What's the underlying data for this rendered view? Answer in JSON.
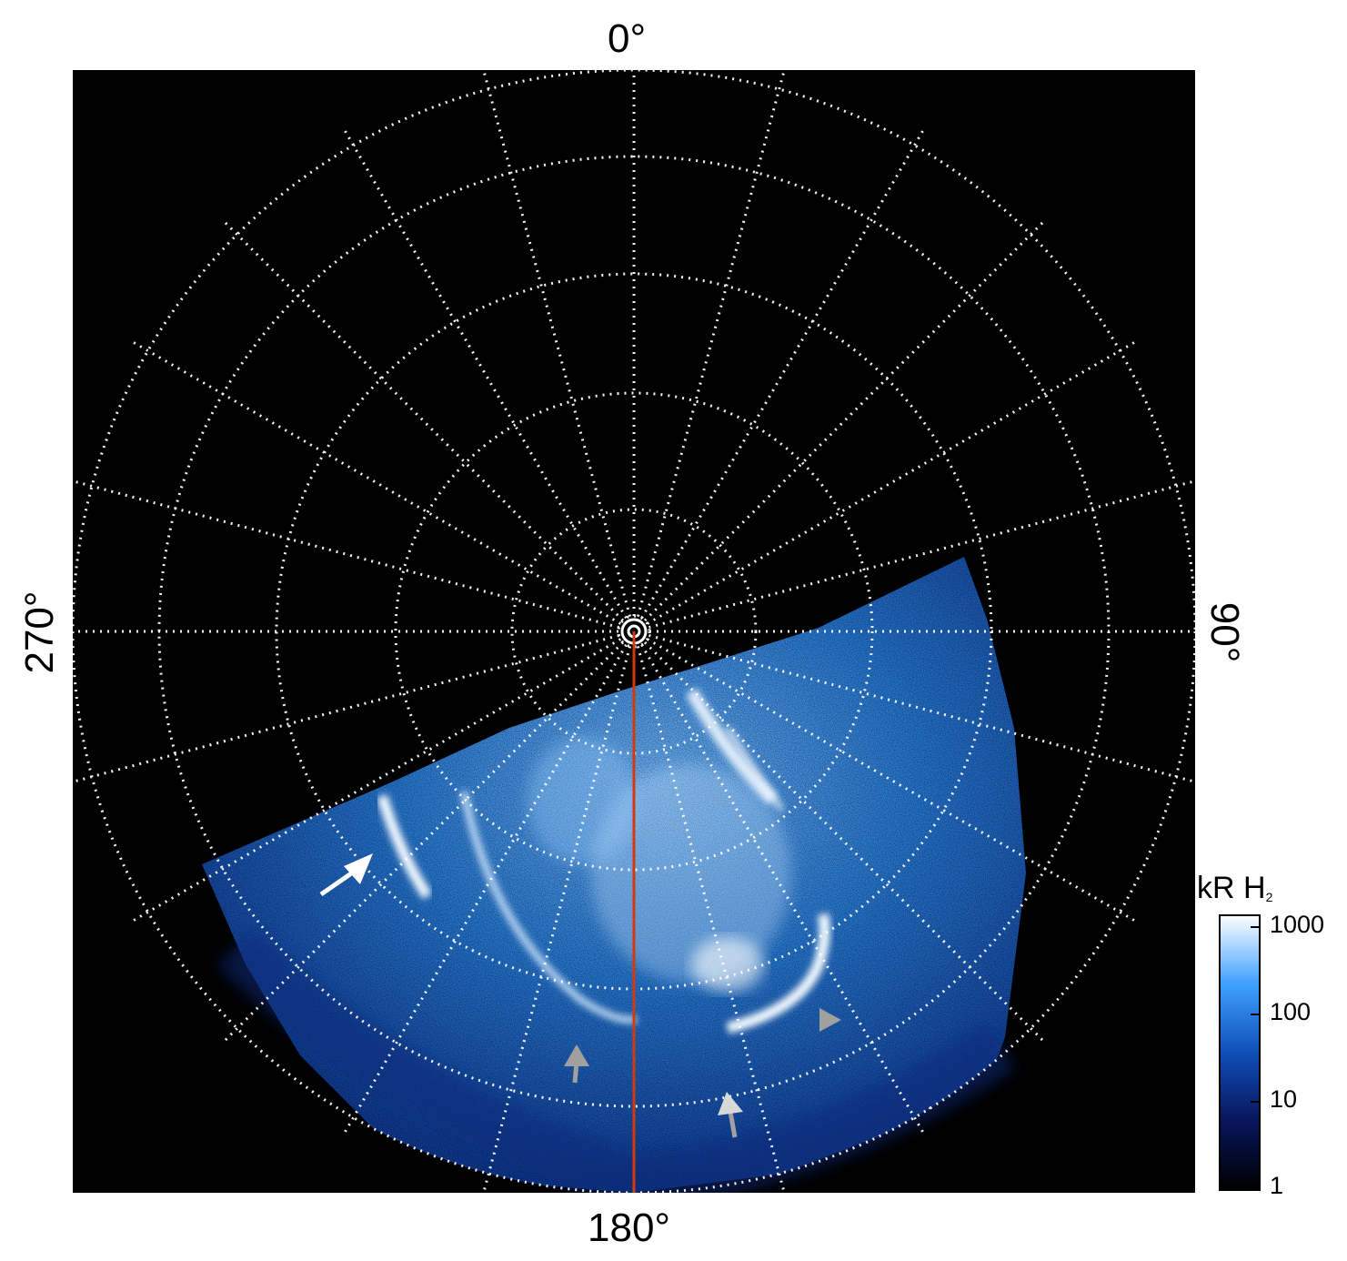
{
  "labels": {
    "top": "0°",
    "bottom": "180°",
    "left": "270°",
    "right": "90°"
  },
  "colorbar": {
    "title": "kR H",
    "subscript": "2",
    "ticks": [
      "1000",
      "100",
      "10",
      "1"
    ]
  },
  "colors": {
    "background": "#000000",
    "grid": "#ffffff",
    "meridian": "#d4380d",
    "aurora_dark": "#0a1e6e",
    "aurora_mid": "#1f7fe0",
    "aurora_bright": "#e8f4ff",
    "arrow_white": "#ffffff",
    "arrow_gray": "#a0a0a0"
  }
}
